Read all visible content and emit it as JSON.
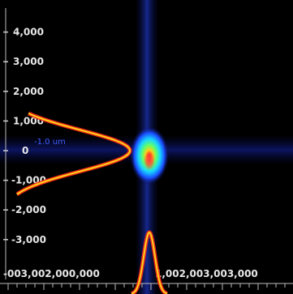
{
  "chart_data": {
    "type": "heatmap",
    "colormap": "jet",
    "background": "#000000",
    "y_ticks": [
      {
        "value": 4000,
        "label": "4,000"
      },
      {
        "value": 3000,
        "label": "3,000"
      },
      {
        "value": 2000,
        "label": "2,000"
      },
      {
        "value": 1000,
        "label": "1,000"
      },
      {
        "value": 0,
        "label": "0"
      },
      {
        "value": -1000,
        "label": "-1,000"
      },
      {
        "value": -2000,
        "label": "-2,000"
      },
      {
        "value": -3000,
        "label": "-3,000"
      }
    ],
    "ylim": [
      -4500,
      4500
    ],
    "x_tick_labels": [
      "-003,002,000,000",
      "1,002,003,003,000"
    ],
    "annotations": [
      {
        "text": "-1.0 um"
      }
    ],
    "spot": {
      "x": 0,
      "y": 0,
      "sigma_x": 300,
      "sigma_y": 700
    },
    "profiles": [
      {
        "name": "vertical-profile",
        "color": "#ffd21a",
        "center": 0,
        "sigma": 700,
        "peak": 1
      },
      {
        "name": "horizontal-profile",
        "color": "#ffd21a",
        "center": 0,
        "sigma": 300,
        "peak": 1
      }
    ]
  }
}
